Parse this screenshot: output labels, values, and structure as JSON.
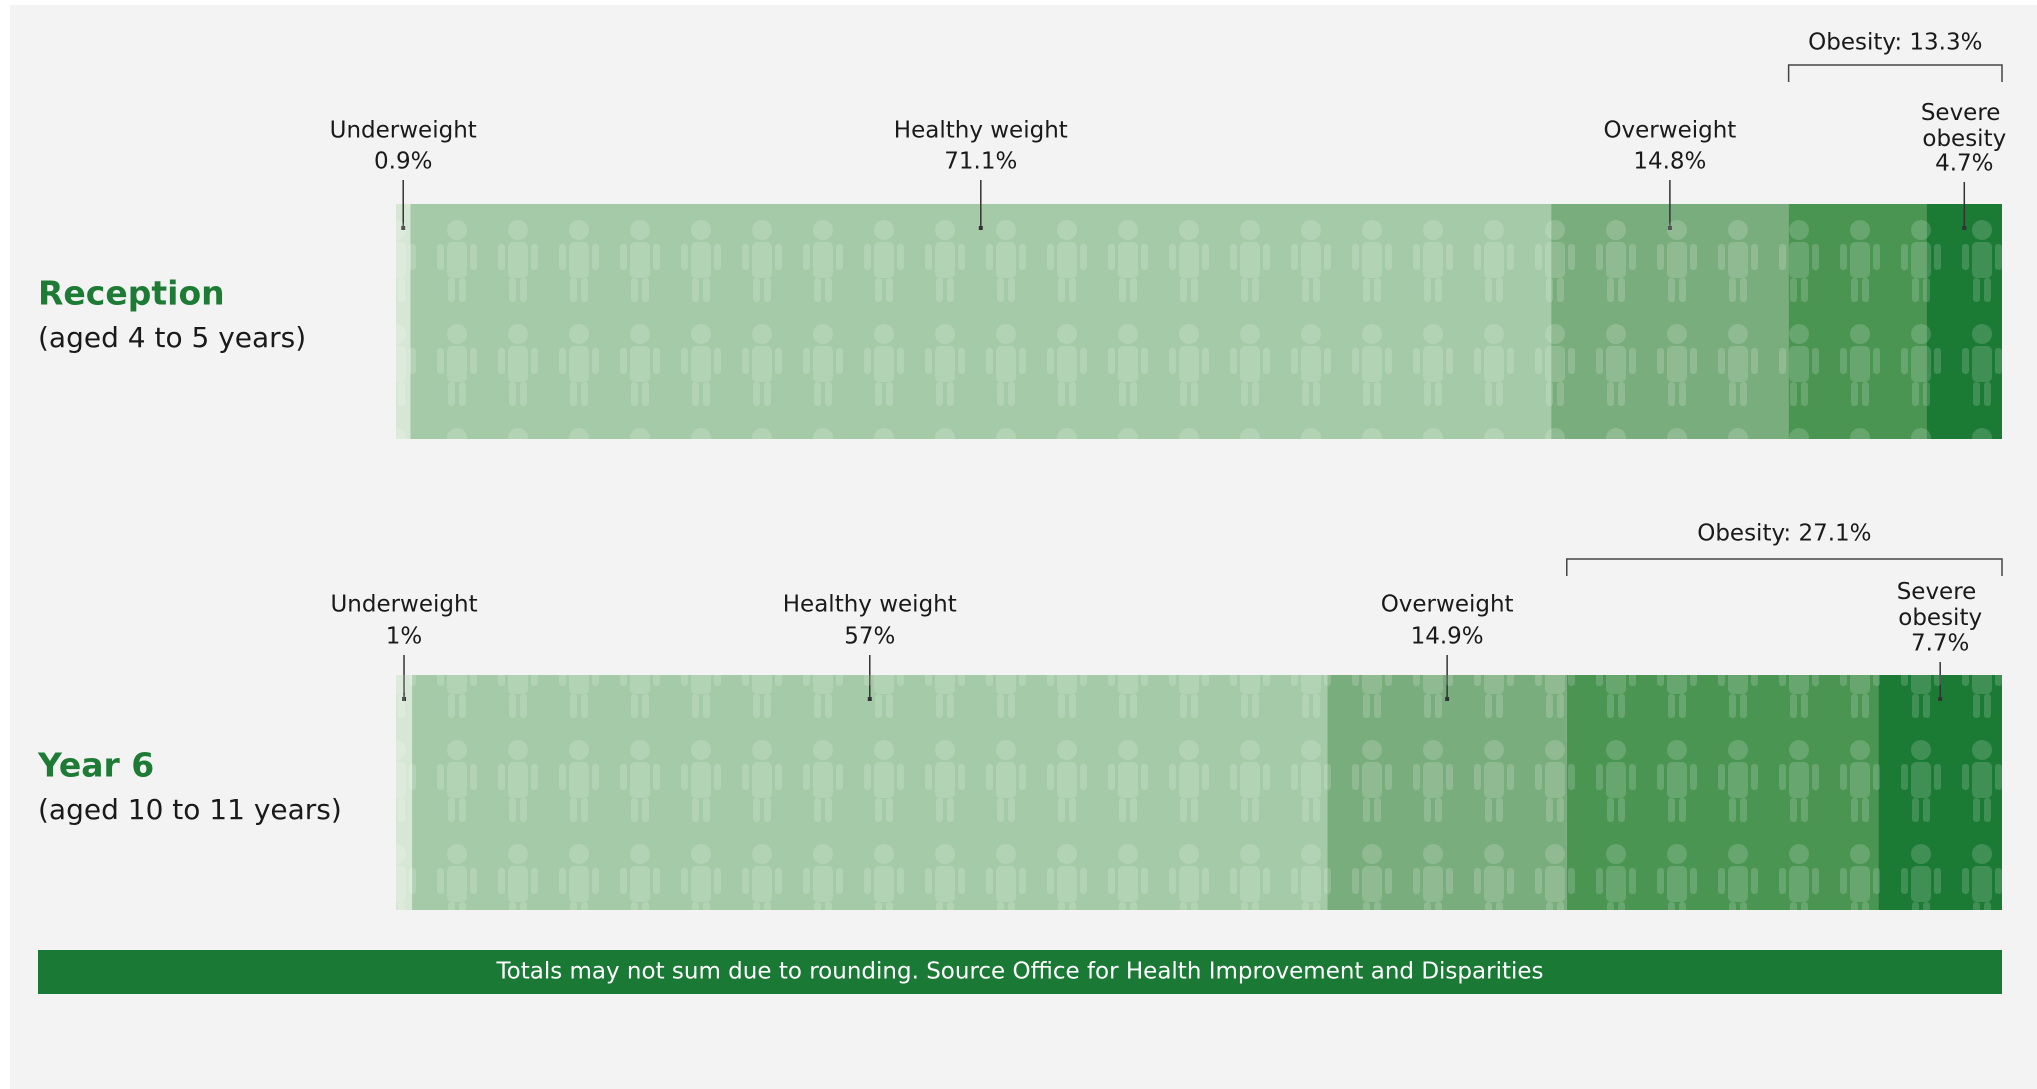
{
  "chart_data": [
    {
      "type": "stacked_bar",
      "title": "Reception",
      "subtitle": "(aged 4 to 5 years)",
      "series": [
        {
          "name": "Underweight",
          "color": "#d6e7d6",
          "values": [
            0.9
          ],
          "value_labels": [
            "0.9%"
          ]
        },
        {
          "name": "Healthy weight",
          "color": "#a5caa7",
          "values": [
            71.1
          ],
          "value_labels": [
            "71.1%"
          ]
        },
        {
          "name": "Overweight",
          "color": "#79ad7d",
          "values": [
            14.8
          ],
          "value_labels": [
            "14.8%"
          ]
        },
        {
          "color": "#4a9552",
          "values": [
            8.6
          ]
        },
        {
          "name": "Severe obesity",
          "color": "#1b7a33",
          "values": [
            4.7
          ],
          "value_labels": [
            "4.7%"
          ]
        }
      ],
      "bracket": {
        "value": 13.3,
        "label": "Obesity: 13.3%"
      }
    },
    {
      "type": "stacked_bar",
      "title": "Year 6",
      "subtitle": "(aged 10 to 11 years)",
      "series": [
        {
          "name": "Underweight",
          "color": "#d6e7d6",
          "values": [
            1
          ],
          "value_labels": [
            "1%"
          ]
        },
        {
          "name": "Healthy weight",
          "color": "#a5caa7",
          "values": [
            57
          ],
          "value_labels": [
            "57%"
          ]
        },
        {
          "name": "Overweight",
          "color": "#79ad7d",
          "values": [
            14.9
          ],
          "value_labels": [
            "14.9%"
          ]
        },
        {
          "color": "#4a9552",
          "values": [
            19.4
          ]
        },
        {
          "name": "Severe obesity",
          "color": "#1b7a33",
          "values": [
            7.7
          ],
          "value_labels": [
            "7.7%"
          ]
        }
      ],
      "bracket": {
        "value": 27.1,
        "label": "Obesity: 27.1%"
      }
    }
  ],
  "footer": "Totals may not sum due to rounding. Source Office for Health Improvement and Disparities"
}
